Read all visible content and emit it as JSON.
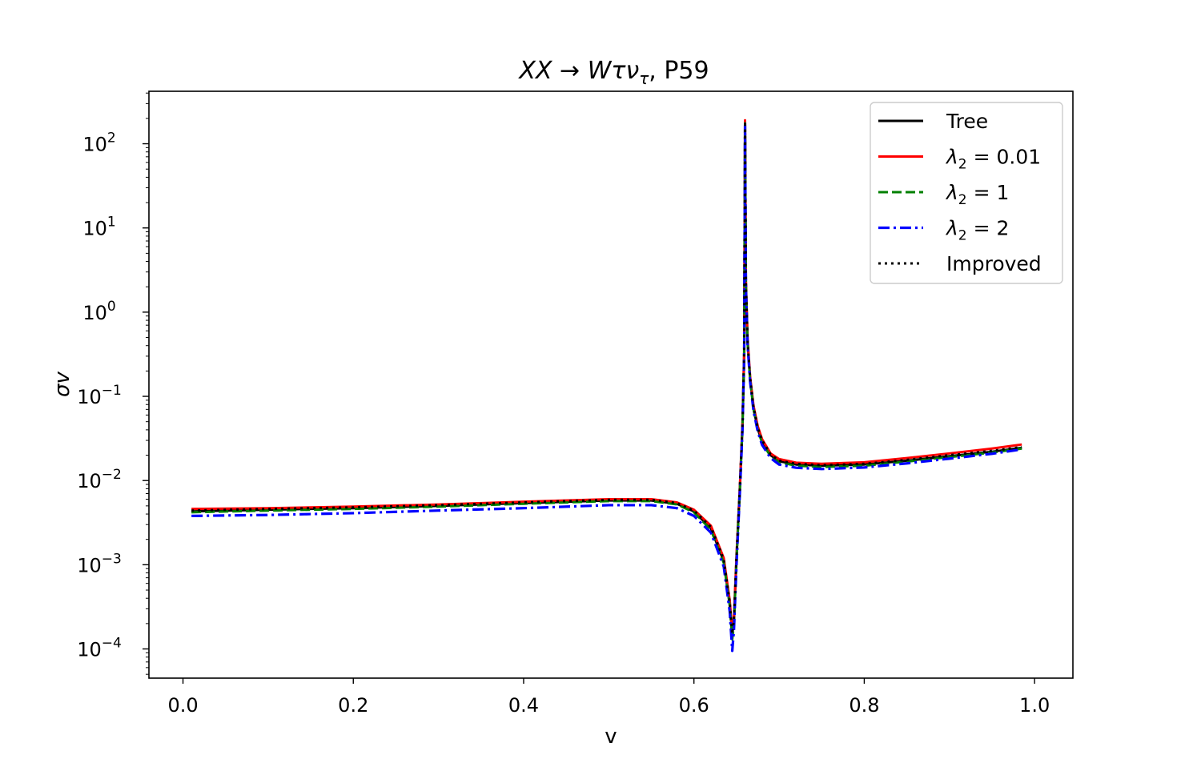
{
  "chart_data": {
    "type": "line",
    "title": "XX → Wτν_τ, P59",
    "title_parts": {
      "lhs": "XX",
      "arrow": "→",
      "main": "Wτν",
      "sub": "τ",
      "suffix": ", P59"
    },
    "xlabel": "v",
    "ylabel": "σv",
    "xlim": [
      -0.04,
      1.045
    ],
    "ylim": [
      4.5e-05,
      420
    ],
    "yscale": "log",
    "grid": false,
    "legend_position": "top-right",
    "x_ticks": [
      0.0,
      0.2,
      0.4,
      0.6,
      0.8,
      1.0
    ],
    "x_tick_labels": [
      "0.0",
      "0.2",
      "0.4",
      "0.6",
      "0.8",
      "1.0"
    ],
    "y_ticks": [
      {
        "value": 0.0001,
        "base": "10",
        "exp": "−4"
      },
      {
        "value": 0.001,
        "base": "10",
        "exp": "−3"
      },
      {
        "value": 0.01,
        "base": "10",
        "exp": "−2"
      },
      {
        "value": 0.1,
        "base": "10",
        "exp": "−1"
      },
      {
        "value": 1,
        "base": "10",
        "exp": "0"
      },
      {
        "value": 10,
        "base": "10",
        "exp": "1"
      },
      {
        "value": 100,
        "base": "10",
        "exp": "2"
      }
    ],
    "series": [
      {
        "name": "Tree",
        "label_sym": "",
        "label_sub": "",
        "label_rest": "Tree",
        "color": "#000000",
        "style": "solid",
        "x": [
          0.01,
          0.1,
          0.2,
          0.3,
          0.4,
          0.5,
          0.55,
          0.58,
          0.6,
          0.62,
          0.635,
          0.642,
          0.645,
          0.647,
          0.65,
          0.654,
          0.657,
          0.659,
          0.66,
          0.661,
          0.663,
          0.666,
          0.67,
          0.675,
          0.68,
          0.69,
          0.7,
          0.72,
          0.75,
          0.8,
          0.85,
          0.9,
          0.95,
          0.985
        ],
        "y": [
          0.0043,
          0.0045,
          0.0047,
          0.005,
          0.0054,
          0.0058,
          0.0058,
          0.0053,
          0.0043,
          0.0027,
          0.0011,
          0.00035,
          0.00015,
          0.00022,
          0.0012,
          0.0083,
          0.045,
          0.32,
          180,
          2.2,
          0.45,
          0.16,
          0.072,
          0.041,
          0.029,
          0.02,
          0.017,
          0.0155,
          0.015,
          0.0155,
          0.0172,
          0.0195,
          0.022,
          0.0245
        ]
      },
      {
        "name": "λ2 = 0.01",
        "label_sym": "λ",
        "label_sub": "2",
        "label_rest": " = 0.01",
        "color": "#ff0000",
        "style": "solid",
        "x": [
          0.01,
          0.1,
          0.2,
          0.3,
          0.4,
          0.5,
          0.55,
          0.58,
          0.6,
          0.62,
          0.635,
          0.642,
          0.645,
          0.647,
          0.65,
          0.654,
          0.657,
          0.659,
          0.66,
          0.661,
          0.663,
          0.666,
          0.67,
          0.675,
          0.68,
          0.69,
          0.7,
          0.72,
          0.75,
          0.8,
          0.85,
          0.9,
          0.95,
          0.985
        ],
        "y": [
          0.0046,
          0.0047,
          0.0049,
          0.0052,
          0.0056,
          0.006,
          0.006,
          0.0055,
          0.0045,
          0.0029,
          0.0012,
          0.00038,
          0.00016,
          0.00024,
          0.0013,
          0.0088,
          0.048,
          0.34,
          190,
          2.35,
          0.48,
          0.17,
          0.077,
          0.044,
          0.031,
          0.021,
          0.018,
          0.0163,
          0.0158,
          0.0165,
          0.0185,
          0.021,
          0.024,
          0.0268
        ]
      },
      {
        "name": "λ2 = 1",
        "label_sym": "λ",
        "label_sub": "2",
        "label_rest": " = 1",
        "color": "#008000",
        "style": "dashed",
        "x": [
          0.01,
          0.1,
          0.2,
          0.3,
          0.4,
          0.5,
          0.55,
          0.58,
          0.6,
          0.62,
          0.635,
          0.642,
          0.645,
          0.647,
          0.65,
          0.654,
          0.657,
          0.659,
          0.66,
          0.661,
          0.663,
          0.666,
          0.67,
          0.675,
          0.68,
          0.69,
          0.7,
          0.72,
          0.75,
          0.8,
          0.85,
          0.9,
          0.95,
          0.985
        ],
        "y": [
          0.0042,
          0.0044,
          0.0046,
          0.0049,
          0.0053,
          0.0057,
          0.0057,
          0.0052,
          0.0042,
          0.0026,
          0.00105,
          0.00033,
          0.00013,
          0.0002,
          0.00115,
          0.008,
          0.043,
          0.31,
          175,
          2.1,
          0.43,
          0.155,
          0.07,
          0.04,
          0.028,
          0.0195,
          0.0165,
          0.015,
          0.0145,
          0.015,
          0.0168,
          0.019,
          0.0215,
          0.024
        ]
      },
      {
        "name": "λ2 = 2",
        "label_sym": "λ",
        "label_sub": "2",
        "label_rest": " = 2",
        "color": "#0000ff",
        "style": "dashdot",
        "x": [
          0.01,
          0.1,
          0.2,
          0.3,
          0.4,
          0.5,
          0.55,
          0.58,
          0.6,
          0.62,
          0.635,
          0.642,
          0.645,
          0.647,
          0.65,
          0.654,
          0.657,
          0.659,
          0.66,
          0.661,
          0.663,
          0.666,
          0.67,
          0.675,
          0.68,
          0.69,
          0.7,
          0.72,
          0.75,
          0.8,
          0.85,
          0.9,
          0.95,
          0.985
        ],
        "y": [
          0.0038,
          0.0039,
          0.0041,
          0.0044,
          0.0047,
          0.0051,
          0.0051,
          0.0047,
          0.0038,
          0.0024,
          0.00095,
          0.00028,
          9.5e-05,
          0.00017,
          0.001,
          0.0075,
          0.04,
          0.29,
          165,
          2.0,
          0.41,
          0.148,
          0.067,
          0.038,
          0.0265,
          0.0185,
          0.0155,
          0.0142,
          0.0137,
          0.0143,
          0.016,
          0.0182,
          0.0208,
          0.0235
        ]
      },
      {
        "name": "Improved",
        "label_sym": "",
        "label_sub": "",
        "label_rest": "Improved",
        "color": "#000000",
        "style": "dotted",
        "x": [
          0.01,
          0.1,
          0.2,
          0.3,
          0.4,
          0.5,
          0.55,
          0.58,
          0.6,
          0.62,
          0.635,
          0.642,
          0.645,
          0.647,
          0.65,
          0.654,
          0.657,
          0.659,
          0.66,
          0.661,
          0.663,
          0.666,
          0.67,
          0.675,
          0.68,
          0.69,
          0.7,
          0.72,
          0.75,
          0.8,
          0.85,
          0.9,
          0.95,
          0.985
        ],
        "y": [
          0.0044,
          0.0046,
          0.0048,
          0.0051,
          0.0055,
          0.0059,
          0.0059,
          0.0054,
          0.0044,
          0.0028,
          0.00115,
          0.00036,
          0.00015,
          0.00023,
          0.00125,
          0.0085,
          0.046,
          0.33,
          185,
          2.25,
          0.46,
          0.165,
          0.074,
          0.042,
          0.03,
          0.0205,
          0.0172,
          0.0158,
          0.0152,
          0.0158,
          0.0176,
          0.02,
          0.0225,
          0.025
        ]
      }
    ]
  }
}
